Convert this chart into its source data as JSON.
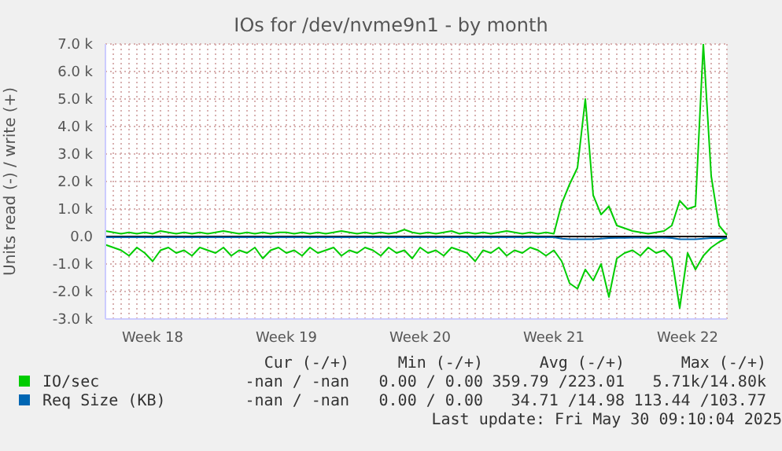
{
  "chart_data": {
    "type": "line",
    "title": "IOs for /dev/nvme9n1 - by month",
    "ylabel": "Units read (-) / write (+)",
    "categories": [
      null,
      null,
      null,
      null,
      null,
      null,
      "Week 18",
      null,
      null,
      null,
      null,
      null,
      null,
      null,
      null,
      null,
      null,
      null,
      null,
      null,
      null,
      null,
      null,
      "Week 19",
      null,
      null,
      null,
      null,
      null,
      null,
      null,
      null,
      null,
      null,
      null,
      null,
      null,
      null,
      null,
      null,
      "Week 20",
      null,
      null,
      null,
      null,
      null,
      null,
      null,
      null,
      null,
      null,
      null,
      null,
      null,
      null,
      null,
      null,
      "Week 21",
      null,
      null,
      null,
      null,
      null,
      null,
      null,
      null,
      null,
      null,
      null,
      null,
      null,
      null,
      null,
      null,
      "Week 22",
      null,
      null,
      null,
      null,
      null
    ],
    "series": [
      {
        "name": "IO/sec",
        "color": "#00cc00",
        "values": [
          200,
          150,
          100,
          150,
          100,
          150,
          100,
          200,
          150,
          100,
          150,
          100,
          150,
          100,
          150,
          200,
          150,
          100,
          150,
          100,
          150,
          100,
          150,
          150,
          100,
          150,
          100,
          150,
          100,
          150,
          200,
          150,
          100,
          150,
          100,
          150,
          100,
          150,
          250,
          150,
          100,
          150,
          100,
          150,
          200,
          100,
          150,
          100,
          150,
          100,
          150,
          200,
          150,
          100,
          150,
          100,
          150,
          100,
          1200,
          1900,
          2500,
          5000,
          1500,
          800,
          1100,
          400,
          300,
          200,
          150,
          100,
          150,
          200,
          400,
          1300,
          1000,
          1100,
          7000,
          2200,
          400,
          50
        ]
      },
      {
        "color": "#00cc00",
        "values": [
          -300,
          -400,
          -500,
          -700,
          -400,
          -600,
          -900,
          -500,
          -400,
          -600,
          -500,
          -700,
          -400,
          -500,
          -600,
          -400,
          -700,
          -500,
          -600,
          -400,
          -800,
          -500,
          -400,
          -600,
          -500,
          -700,
          -400,
          -600,
          -500,
          -400,
          -700,
          -500,
          -600,
          -400,
          -500,
          -700,
          -400,
          -600,
          -500,
          -800,
          -400,
          -600,
          -500,
          -700,
          -400,
          -500,
          -600,
          -900,
          -500,
          -600,
          -400,
          -700,
          -500,
          -600,
          -400,
          -500,
          -700,
          -500,
          -900,
          -1700,
          -1900,
          -1200,
          -1600,
          -1000,
          -2200,
          -800,
          -600,
          -500,
          -700,
          -400,
          -600,
          -500,
          -800,
          -2600,
          -600,
          -1200,
          -700,
          -400,
          -200,
          -50
        ]
      },
      {
        "name": "Req Size (KB)",
        "color": "#0066b3",
        "values": [
          -30,
          -30,
          -30,
          -30,
          -30,
          -30,
          -30,
          -30,
          -30,
          -30,
          -30,
          -30,
          -30,
          -30,
          -30,
          -30,
          -30,
          -30,
          -30,
          -30,
          -30,
          -30,
          -30,
          -30,
          -30,
          -30,
          -30,
          -30,
          -30,
          -30,
          -30,
          -30,
          -30,
          -30,
          -30,
          -30,
          -30,
          -30,
          -30,
          -30,
          -30,
          -30,
          -30,
          -30,
          -30,
          -30,
          -30,
          -30,
          -30,
          -30,
          -30,
          -30,
          -30,
          -30,
          -30,
          -30,
          -30,
          -30,
          -80,
          -100,
          -100,
          -100,
          -100,
          -80,
          -60,
          -50,
          -50,
          -40,
          -40,
          -40,
          -40,
          -40,
          -60,
          -100,
          -100,
          -100,
          -80,
          -60,
          -60,
          -60
        ]
      }
    ],
    "ylim": [
      -3000,
      7000
    ],
    "yticks": [
      {
        "value": -3000,
        "label": "-3.0 k"
      },
      {
        "value": -2000,
        "label": "-2.0 k"
      },
      {
        "value": -1000,
        "label": "-1.0 k"
      },
      {
        "value": 0,
        "label": "0.0"
      },
      {
        "value": 1000,
        "label": "1.0 k"
      },
      {
        "value": 2000,
        "label": "2.0 k"
      },
      {
        "value": 3000,
        "label": "3.0 k"
      },
      {
        "value": 4000,
        "label": "4.0 k"
      },
      {
        "value": 5000,
        "label": "5.0 k"
      },
      {
        "value": 6000,
        "label": "6.0 k"
      },
      {
        "value": 7000,
        "label": "7.0 k"
      }
    ],
    "ref_lines": [
      {
        "axis": "y",
        "value": 0,
        "color": "#000000"
      }
    ],
    "grid": true,
    "legend": "bottom",
    "marker": "none",
    "line_style": "solid",
    "annotations": [
      "Cur (-/+)",
      "Min (-/+)",
      "Avg (-/+)",
      "Max (-/+)",
      "-nan / -nan",
      "0.00 / 0.00",
      "359.79 /223.01",
      "5.71k/14.80k",
      "-nan / -nan",
      "0.00 / 0.00",
      "34.71 /14.98",
      "113.44 /103.77",
      "Last update: Fri May 30 09:10:04 2025"
    ]
  }
}
